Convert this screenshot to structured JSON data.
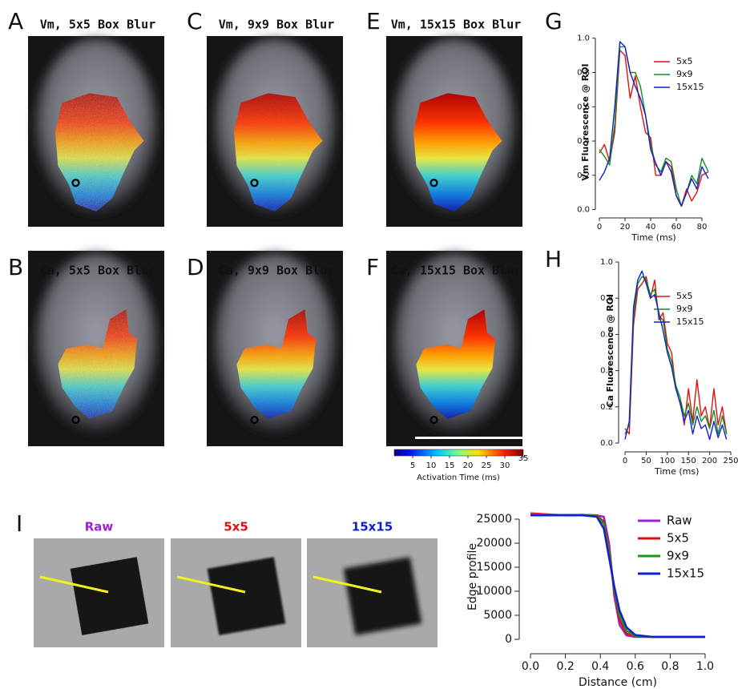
{
  "panels": [
    {
      "letter": "A",
      "title": "Vm, 5x5 Box Blur"
    },
    {
      "letter": "C",
      "title": "Vm, 9x9 Box Blur"
    },
    {
      "letter": "E",
      "title": "Vm, 15x15 Box Blur"
    },
    {
      "letter": "B",
      "title": "Ca, 5x5 Box Blur"
    },
    {
      "letter": "D",
      "title": "Ca, 9x9 Box Blur"
    },
    {
      "letter": "F",
      "title": "Ca, 15x15 Box Blur"
    }
  ],
  "colorbar": {
    "label": "Activation Time (ms)",
    "clim": [
      0,
      35
    ],
    "ticks": [
      5,
      10,
      15,
      20,
      25,
      30,
      35
    ]
  },
  "panel_I": {
    "letter": "I",
    "images": [
      {
        "label": "Raw",
        "color": "#a020d8"
      },
      {
        "label": "5x5",
        "color": "#e01010"
      },
      {
        "label": "15x15",
        "color": "#1020d0"
      }
    ]
  },
  "chart_data": [
    {
      "type": "line",
      "letter": "G",
      "xlabel": "Time (ms)",
      "ylabel": "Vm Fluorescence @ ROI",
      "x": [
        0,
        4,
        8,
        12,
        16,
        20,
        24,
        28,
        32,
        36,
        40,
        44,
        48,
        52,
        56,
        60,
        64,
        68,
        72,
        76,
        80,
        85
      ],
      "series": [
        {
          "name": "5x5",
          "color": "#e01010",
          "values": [
            0.33,
            0.38,
            0.28,
            0.45,
            0.93,
            0.9,
            0.65,
            0.78,
            0.6,
            0.45,
            0.42,
            0.2,
            0.2,
            0.28,
            0.25,
            0.08,
            0.02,
            0.12,
            0.05,
            0.1,
            0.2,
            0.22
          ]
        },
        {
          "name": "9x9",
          "color": "#1a8a1a",
          "values": [
            0.35,
            0.31,
            0.26,
            0.5,
            0.95,
            0.95,
            0.8,
            0.8,
            0.72,
            0.55,
            0.38,
            0.26,
            0.22,
            0.3,
            0.28,
            0.12,
            0.02,
            0.1,
            0.2,
            0.15,
            0.3,
            0.22
          ]
        },
        {
          "name": "15x15",
          "color": "#1020d0",
          "values": [
            0.17,
            0.22,
            0.3,
            0.6,
            0.98,
            0.95,
            0.8,
            0.72,
            0.65,
            0.55,
            0.35,
            0.27,
            0.2,
            0.28,
            0.22,
            0.08,
            0.02,
            0.1,
            0.18,
            0.12,
            0.25,
            0.18
          ]
        }
      ],
      "xlim": [
        0,
        85
      ],
      "xticks": [
        0,
        20,
        40,
        60,
        80
      ],
      "ylim": [
        -0.03,
        1.05
      ],
      "yticks": [
        {
          "value": 0,
          "label": "0.0"
        },
        0.2,
        0.4,
        0.6,
        0.8,
        {
          "value": 1,
          "label": "1.0"
        }
      ]
    },
    {
      "type": "line",
      "letter": "H",
      "xlabel": "Time (ms)",
      "ylabel": "Ca Fluorescence @ ROI",
      "x": [
        0,
        10,
        20,
        30,
        40,
        50,
        60,
        70,
        80,
        90,
        100,
        110,
        120,
        130,
        140,
        150,
        160,
        170,
        180,
        190,
        200,
        210,
        220,
        230,
        240
      ],
      "series": [
        {
          "name": "5x5",
          "color": "#e01010",
          "values": [
            0.08,
            0.05,
            0.65,
            0.85,
            0.88,
            0.92,
            0.8,
            0.9,
            0.68,
            0.72,
            0.55,
            0.5,
            0.3,
            0.25,
            0.1,
            0.3,
            0.12,
            0.35,
            0.15,
            0.2,
            0.08,
            0.3,
            0.1,
            0.2,
            0.05
          ]
        },
        {
          "name": "9x9",
          "color": "#1a8a1a",
          "values": [
            0.05,
            0.1,
            0.7,
            0.88,
            0.92,
            0.9,
            0.82,
            0.85,
            0.7,
            0.68,
            0.52,
            0.45,
            0.32,
            0.25,
            0.15,
            0.22,
            0.1,
            0.2,
            0.12,
            0.15,
            0.08,
            0.18,
            0.05,
            0.15,
            0.05
          ]
        },
        {
          "name": "15x15",
          "color": "#1020d0",
          "values": [
            0.02,
            0.12,
            0.75,
            0.9,
            0.95,
            0.88,
            0.8,
            0.82,
            0.72,
            0.62,
            0.5,
            0.42,
            0.3,
            0.22,
            0.12,
            0.18,
            0.05,
            0.15,
            0.08,
            0.1,
            0.02,
            0.12,
            0.03,
            0.1,
            0.02
          ]
        }
      ],
      "xlim": [
        -5,
        250
      ],
      "xticks": [
        0,
        50,
        100,
        150,
        200,
        250
      ],
      "ylim": [
        -0.03,
        1.05
      ],
      "yticks": [
        {
          "value": 0,
          "label": "0.0"
        },
        0.2,
        0.4,
        0.6,
        0.8,
        {
          "value": 1,
          "label": "1.0"
        }
      ]
    },
    {
      "type": "line",
      "xlabel": "Distance (cm)",
      "ylabel": "Edge profile",
      "x": [
        0,
        0.1,
        0.2,
        0.3,
        0.38,
        0.42,
        0.45,
        0.48,
        0.51,
        0.55,
        0.6,
        0.7,
        0.8,
        0.9,
        1.0
      ],
      "series": [
        {
          "name": "Raw",
          "color": "#a020d8",
          "values": [
            26000,
            25900,
            25800,
            25900,
            25800,
            25500,
            20000,
            9000,
            3000,
            800,
            500,
            500,
            500,
            500,
            500
          ]
        },
        {
          "name": "5x5",
          "color": "#e01010",
          "values": [
            26200,
            26000,
            25800,
            25900,
            25800,
            24500,
            19000,
            10000,
            4000,
            1200,
            600,
            500,
            500,
            500,
            500
          ]
        },
        {
          "name": "9x9",
          "color": "#1a9a1a",
          "values": [
            26000,
            25900,
            25900,
            25900,
            25700,
            24000,
            18000,
            10500,
            5000,
            1800,
            700,
            500,
            500,
            500,
            500
          ]
        },
        {
          "name": "15x15",
          "color": "#1020d0",
          "values": [
            25800,
            25800,
            25800,
            25800,
            25500,
            23000,
            17000,
            11000,
            6000,
            2500,
            900,
            500,
            500,
            500,
            500
          ]
        }
      ],
      "xlim": [
        -0.03,
        1.03
      ],
      "xticks": [
        {
          "value": 0,
          "label": "0.0"
        },
        0.2,
        0.4,
        0.6,
        0.8,
        {
          "value": 1,
          "label": "1.0"
        }
      ],
      "ylim": [
        -1000,
        27000
      ],
      "yticks": [
        0,
        5000,
        10000,
        15000,
        20000,
        25000
      ]
    }
  ]
}
